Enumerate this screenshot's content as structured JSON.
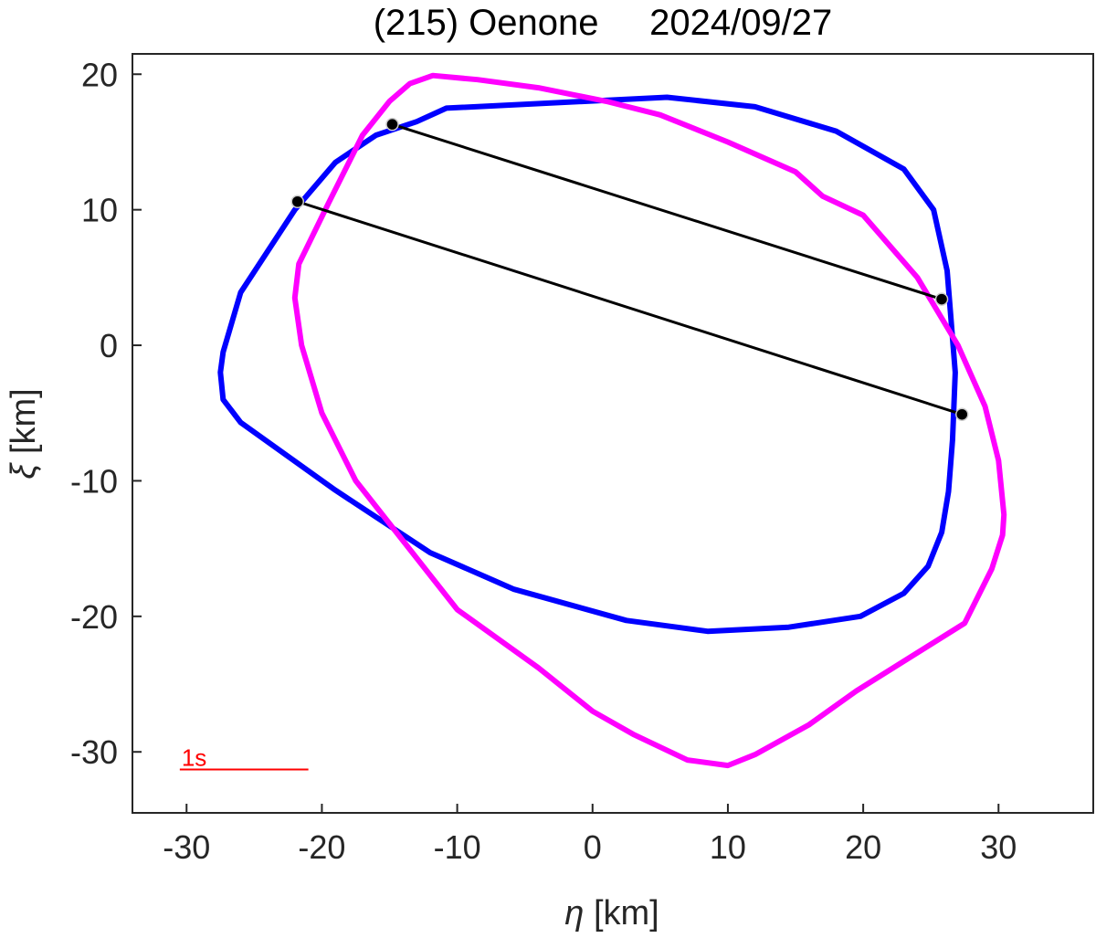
{
  "chart_data": {
    "type": "line",
    "title": "(215) Oenone     2024/09/27",
    "xlabel_symbol": "η",
    "xlabel_unit": " [km]",
    "ylabel_symbol": "ξ",
    "ylabel_unit": " [km]",
    "xlim": [
      -34,
      37
    ],
    "ylim": [
      -34.5,
      21.5
    ],
    "xticks": [
      -30,
      -20,
      -10,
      0,
      10,
      20,
      30
    ],
    "yticks": [
      20,
      10,
      0,
      -10,
      -20,
      -30
    ],
    "grid": false,
    "series": [
      {
        "color": "#0000ff",
        "closed": true,
        "x": [
          -10.8,
          5.5,
          12.0,
          18.0,
          23.0,
          25.2,
          26.2,
          26.8,
          26.6,
          26.3,
          25.8,
          24.8,
          23.0,
          19.8,
          14.5,
          8.5,
          2.5,
          -5.8,
          -12.0,
          -19.0,
          -26.0,
          -27.3,
          -27.5,
          -27.3,
          -26.0,
          -22.0,
          -19.0,
          -16.0,
          -13.0
        ],
        "y": [
          17.5,
          18.3,
          17.6,
          15.8,
          13.0,
          10.0,
          5.5,
          -2.0,
          -7.0,
          -10.8,
          -13.8,
          -16.3,
          -18.3,
          -20.0,
          -20.8,
          -21.1,
          -20.3,
          -18.0,
          -15.3,
          -10.7,
          -5.7,
          -4.0,
          -2.0,
          -0.5,
          3.9,
          10.0,
          13.5,
          15.5,
          16.5
        ]
      },
      {
        "color": "#ff00ff",
        "closed": true,
        "x": [
          -11.8,
          -8.5,
          -4.0,
          1.0,
          5.0,
          10.0,
          15.0,
          17.0,
          20.0,
          24.0,
          27.0,
          29.0,
          30.0,
          30.4,
          30.3,
          29.5,
          27.5,
          23.5,
          19.5,
          16.0,
          12.0,
          10.0,
          7.0,
          3.0,
          0.0,
          -4.0,
          -10.0,
          -17.5,
          -20.0,
          -21.5,
          -22.0,
          -21.7,
          -19.5,
          -17.0,
          -15.0,
          -13.5
        ],
        "y": [
          19.9,
          19.6,
          19.0,
          18.0,
          17.0,
          15.0,
          12.8,
          11.0,
          9.6,
          5.0,
          0.0,
          -4.5,
          -8.5,
          -12.5,
          -14.0,
          -16.5,
          -20.5,
          -23.0,
          -25.5,
          -28.0,
          -30.2,
          -31.0,
          -30.6,
          -28.7,
          -27.0,
          -23.8,
          -19.5,
          -10.0,
          -5.0,
          0.0,
          3.5,
          6.0,
          10.5,
          15.5,
          18.0,
          19.3
        ]
      }
    ],
    "chords": [
      {
        "x": [
          -14.8,
          25.8
        ],
        "y": [
          16.3,
          3.4
        ],
        "color": "#000000"
      },
      {
        "x": [
          -21.8,
          27.3
        ],
        "y": [
          10.6,
          -5.1
        ],
        "color": "#000000"
      }
    ],
    "scale_bar": {
      "label": "1s",
      "x": [
        -30.5,
        -21.0
      ],
      "y": -31.3,
      "color": "#ff0000"
    }
  }
}
